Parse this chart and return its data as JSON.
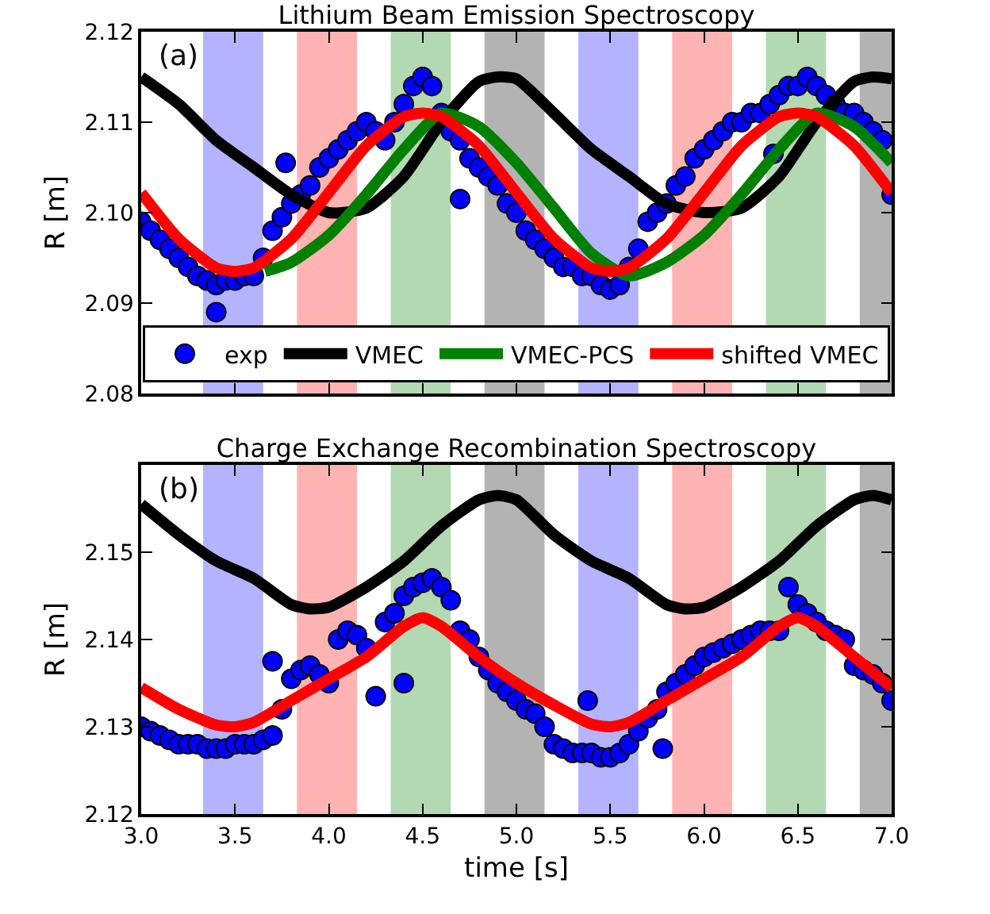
{
  "chart_data": [
    {
      "type": "line",
      "title": "Lithium Beam Emission Spectroscopy",
      "ylabel": "R [m]",
      "annotations": [
        "(a)"
      ],
      "xlim": [
        3,
        7
      ],
      "xticks": [
        {
          "value": 3,
          "label": null
        },
        {
          "value": 3.5,
          "label": null
        },
        {
          "value": 4,
          "label": null
        },
        {
          "value": 4.5,
          "label": null
        },
        {
          "value": 5,
          "label": null
        },
        {
          "value": 5.5,
          "label": null
        },
        {
          "value": 6,
          "label": null
        },
        {
          "value": 6.5,
          "label": null
        },
        {
          "value": 7,
          "label": null
        }
      ],
      "ylim": [
        2.08,
        2.12
      ],
      "yticks": [
        {
          "value": 2.08,
          "label": "2.08"
        },
        {
          "value": 2.09,
          "label": "2.09"
        },
        {
          "value": 2.1,
          "label": "2.10"
        },
        {
          "value": 2.11,
          "label": "2.11"
        },
        {
          "value": 2.12,
          "label": "2.12"
        }
      ],
      "tick_labels": "y",
      "grid": false,
      "legend": "bottom",
      "bands": [
        {
          "axis": "x",
          "from": 3.33,
          "to": 3.65,
          "color": "#b3b3ff"
        },
        {
          "axis": "x",
          "from": 3.83,
          "to": 4.15,
          "color": "#ffb3b3"
        },
        {
          "axis": "x",
          "from": 4.33,
          "to": 4.65,
          "color": "#b3d9b3"
        },
        {
          "axis": "x",
          "from": 4.83,
          "to": 5.15,
          "color": "#b3b3b3"
        },
        {
          "axis": "x",
          "from": 5.33,
          "to": 5.65,
          "color": "#b3b3ff"
        },
        {
          "axis": "x",
          "from": 5.83,
          "to": 6.15,
          "color": "#ffb3b3"
        },
        {
          "axis": "x",
          "from": 6.33,
          "to": 6.65,
          "color": "#b3d9b3"
        },
        {
          "axis": "x",
          "from": 6.83,
          "to": 7.0,
          "color": "#b3b3b3"
        }
      ],
      "series": [
        {
          "name": "exp",
          "type": "scatter",
          "marker": "circle",
          "color": "#0000ff",
          "x": [
            3.0,
            3.05,
            3.1,
            3.15,
            3.2,
            3.25,
            3.3,
            3.35,
            3.4,
            3.4,
            3.45,
            3.5,
            3.55,
            3.6,
            3.65,
            3.7,
            3.75,
            3.77,
            3.8,
            3.85,
            3.9,
            3.95,
            4.0,
            4.05,
            4.1,
            4.15,
            4.2,
            4.25,
            4.3,
            4.35,
            4.4,
            4.45,
            4.5,
            4.55,
            4.6,
            4.65,
            4.7,
            4.7,
            4.75,
            4.8,
            4.85,
            4.9,
            4.95,
            5.0,
            5.05,
            5.1,
            5.15,
            5.2,
            5.25,
            5.3,
            5.35,
            5.4,
            5.45,
            5.5,
            5.55,
            5.6,
            5.65,
            5.7,
            5.75,
            5.8,
            5.85,
            5.9,
            5.95,
            6.0,
            6.05,
            6.1,
            6.15,
            6.2,
            6.25,
            6.3,
            6.35,
            6.37,
            6.4,
            6.45,
            6.5,
            6.55,
            6.6,
            6.65,
            6.7,
            6.75,
            6.8,
            6.85,
            6.9,
            6.95,
            7.0
          ],
          "values": [
            2.099,
            2.098,
            2.097,
            2.096,
            2.095,
            2.094,
            2.093,
            2.0925,
            2.092,
            2.089,
            2.0925,
            2.0925,
            2.093,
            2.093,
            2.095,
            2.098,
            2.0995,
            2.1055,
            2.101,
            2.102,
            2.103,
            2.105,
            2.106,
            2.107,
            2.108,
            2.109,
            2.11,
            2.109,
            2.108,
            2.11,
            2.112,
            2.114,
            2.115,
            2.114,
            2.111,
            2.109,
            2.108,
            2.1015,
            2.106,
            2.105,
            2.104,
            2.103,
            2.101,
            2.1,
            2.098,
            2.097,
            2.096,
            2.095,
            2.094,
            2.094,
            2.093,
            2.093,
            2.092,
            2.0915,
            2.092,
            2.094,
            2.096,
            2.099,
            2.1,
            2.101,
            2.103,
            2.104,
            2.106,
            2.107,
            2.108,
            2.109,
            2.11,
            2.11,
            2.111,
            2.111,
            2.112,
            2.1065,
            2.113,
            2.114,
            2.114,
            2.115,
            2.114,
            2.113,
            2.112,
            2.111,
            2.111,
            2.11,
            2.109,
            2.108,
            2.102
          ]
        },
        {
          "name": "VMEC",
          "type": "line",
          "marker": "none",
          "line_style": "solid",
          "color": "#000000",
          "x": [
            3.0,
            3.2,
            3.4,
            3.6,
            3.8,
            4.0,
            4.2,
            4.4,
            4.6,
            4.8,
            4.9,
            5.0,
            5.2,
            5.4,
            5.6,
            5.8,
            6.0,
            6.2,
            6.4,
            6.6,
            6.8,
            6.9,
            7.0
          ],
          "values": [
            2.115,
            2.112,
            2.108,
            2.105,
            2.102,
            2.1,
            2.1005,
            2.104,
            2.11,
            2.1145,
            2.115,
            2.1148,
            2.111,
            2.107,
            2.104,
            2.101,
            2.1,
            2.1005,
            2.104,
            2.11,
            2.1145,
            2.115,
            2.1148
          ]
        },
        {
          "name": "VMEC-PCS",
          "type": "line",
          "marker": "none",
          "line_style": "solid",
          "color": "#008000",
          "x": [
            3.66,
            3.8,
            4.0,
            4.2,
            4.4,
            4.6,
            4.8,
            5.0,
            5.2,
            5.4,
            5.6,
            5.8,
            6.0,
            6.2,
            6.4,
            6.6,
            6.8,
            7.0
          ],
          "values": [
            2.0935,
            2.0945,
            2.0975,
            2.102,
            2.107,
            2.111,
            2.1095,
            2.1055,
            2.1005,
            2.0955,
            2.093,
            2.0945,
            2.0975,
            2.102,
            2.107,
            2.111,
            2.1095,
            2.1055
          ]
        },
        {
          "name": "shifted VMEC",
          "type": "line",
          "marker": "none",
          "line_style": "solid",
          "color": "#ff0000",
          "x": [
            3.0,
            3.2,
            3.4,
            3.5,
            3.6,
            3.8,
            4.0,
            4.2,
            4.4,
            4.5,
            4.6,
            4.8,
            5.0,
            5.2,
            5.4,
            5.5,
            5.6,
            5.8,
            6.0,
            6.2,
            6.4,
            6.5,
            6.6,
            6.8,
            7.0
          ],
          "values": [
            2.1022,
            2.0971,
            2.0939,
            2.0935,
            2.0939,
            2.0971,
            2.1022,
            2.1074,
            2.1106,
            2.111,
            2.1106,
            2.1074,
            2.1022,
            2.0971,
            2.0939,
            2.0935,
            2.0939,
            2.0971,
            2.1022,
            2.1074,
            2.1106,
            2.111,
            2.1106,
            2.1074,
            2.1022
          ]
        }
      ]
    },
    {
      "type": "line",
      "title": "Charge Exchange Recombination Spectroscopy",
      "ylabel": "R [m]",
      "xlabel": "time [s]",
      "annotations": [
        "(b)"
      ],
      "xlim": [
        3,
        7
      ],
      "xticks": [
        {
          "value": 3,
          "label": "3.0"
        },
        {
          "value": 3.5,
          "label": "3.5"
        },
        {
          "value": 4,
          "label": "4.0"
        },
        {
          "value": 4.5,
          "label": "4.5"
        },
        {
          "value": 5,
          "label": "5.0"
        },
        {
          "value": 5.5,
          "label": "5.5"
        },
        {
          "value": 6,
          "label": "6.0"
        },
        {
          "value": 6.5,
          "label": "6.5"
        },
        {
          "value": 7,
          "label": "7.0"
        }
      ],
      "ylim": [
        2.12,
        2.16
      ],
      "yticks": [
        {
          "value": 2.12,
          "label": "2.12"
        },
        {
          "value": 2.13,
          "label": "2.13"
        },
        {
          "value": 2.14,
          "label": "2.14"
        },
        {
          "value": 2.15,
          "label": "2.15"
        }
      ],
      "grid": false,
      "legend": false,
      "bands": [
        {
          "axis": "x",
          "from": 3.33,
          "to": 3.65,
          "color": "#b3b3ff"
        },
        {
          "axis": "x",
          "from": 3.83,
          "to": 4.15,
          "color": "#ffb3b3"
        },
        {
          "axis": "x",
          "from": 4.33,
          "to": 4.65,
          "color": "#b3d9b3"
        },
        {
          "axis": "x",
          "from": 4.83,
          "to": 5.15,
          "color": "#b3b3b3"
        },
        {
          "axis": "x",
          "from": 5.33,
          "to": 5.65,
          "color": "#b3b3ff"
        },
        {
          "axis": "x",
          "from": 5.83,
          "to": 6.15,
          "color": "#ffb3b3"
        },
        {
          "axis": "x",
          "from": 6.33,
          "to": 6.65,
          "color": "#b3d9b3"
        },
        {
          "axis": "x",
          "from": 6.83,
          "to": 7.0,
          "color": "#b3b3b3"
        }
      ],
      "series": [
        {
          "type": "scatter",
          "marker": "circle",
          "color": "#0000ff",
          "x": [
            3.0,
            3.05,
            3.1,
            3.15,
            3.2,
            3.25,
            3.3,
            3.35,
            3.4,
            3.45,
            3.5,
            3.55,
            3.6,
            3.65,
            3.7,
            3.7,
            3.75,
            3.8,
            3.85,
            3.9,
            3.95,
            4.0,
            4.05,
            4.1,
            4.15,
            4.2,
            4.25,
            4.3,
            4.35,
            4.4,
            4.4,
            4.45,
            4.5,
            4.55,
            4.6,
            4.65,
            4.7,
            4.75,
            4.8,
            4.85,
            4.9,
            4.95,
            5.0,
            5.05,
            5.1,
            5.15,
            5.2,
            5.25,
            5.3,
            5.35,
            5.38,
            5.4,
            5.45,
            5.5,
            5.55,
            5.6,
            5.65,
            5.7,
            5.75,
            5.78,
            5.8,
            5.85,
            5.9,
            5.95,
            6.0,
            6.05,
            6.1,
            6.15,
            6.2,
            6.25,
            6.3,
            6.35,
            6.4,
            6.45,
            6.5,
            6.55,
            6.6,
            6.65,
            6.7,
            6.75,
            6.8,
            6.85,
            6.9,
            6.95,
            7.0
          ],
          "values": [
            2.13,
            2.1295,
            2.129,
            2.1285,
            2.128,
            2.128,
            2.128,
            2.1275,
            2.1275,
            2.1275,
            2.128,
            2.128,
            2.128,
            2.1285,
            2.129,
            2.1375,
            2.132,
            2.1355,
            2.1365,
            2.137,
            2.136,
            2.135,
            2.14,
            2.141,
            2.1405,
            2.139,
            2.1335,
            2.142,
            2.143,
            2.145,
            2.135,
            2.146,
            2.1465,
            2.147,
            2.146,
            2.1445,
            2.141,
            2.14,
            2.138,
            2.1365,
            2.135,
            2.134,
            2.133,
            2.132,
            2.1315,
            2.13,
            2.128,
            2.1275,
            2.127,
            2.127,
            2.133,
            2.127,
            2.1265,
            2.1265,
            2.127,
            2.128,
            2.1295,
            2.131,
            2.132,
            2.1275,
            2.134,
            2.135,
            2.136,
            2.137,
            2.138,
            2.1385,
            2.139,
            2.1395,
            2.14,
            2.1405,
            2.141,
            2.141,
            2.141,
            2.146,
            2.144,
            2.143,
            2.142,
            2.141,
            2.1405,
            2.14,
            2.137,
            2.1365,
            2.136,
            2.135,
            2.133
          ]
        },
        {
          "type": "line",
          "marker": "none",
          "line_style": "solid",
          "color": "#000000",
          "x": [
            3.0,
            3.2,
            3.4,
            3.6,
            3.8,
            3.9,
            4.0,
            4.2,
            4.4,
            4.6,
            4.8,
            4.9,
            5.0,
            5.2,
            5.4,
            5.6,
            5.8,
            5.9,
            6.0,
            6.2,
            6.4,
            6.6,
            6.8,
            6.9,
            7.0
          ],
          "values": [
            2.1555,
            2.152,
            2.149,
            2.147,
            2.144,
            2.1435,
            2.1437,
            2.146,
            2.149,
            2.153,
            2.156,
            2.1565,
            2.156,
            2.152,
            2.149,
            2.147,
            2.144,
            2.1435,
            2.1437,
            2.146,
            2.149,
            2.153,
            2.156,
            2.1565,
            2.156
          ]
        },
        {
          "type": "line",
          "marker": "none",
          "line_style": "solid",
          "color": "#ff0000",
          "x": [
            3.0,
            3.2,
            3.4,
            3.5,
            3.6,
            3.8,
            4.0,
            4.2,
            4.4,
            4.5,
            4.6,
            4.8,
            5.0,
            5.2,
            5.4,
            5.5,
            5.6,
            5.8,
            6.0,
            6.2,
            6.4,
            6.5,
            6.6,
            6.8,
            7.0
          ],
          "values": [
            2.1345,
            2.132,
            2.1302,
            2.13,
            2.1305,
            2.133,
            2.1355,
            2.138,
            2.1415,
            2.1425,
            2.1415,
            2.138,
            2.135,
            2.1325,
            2.1303,
            2.13,
            2.1305,
            2.133,
            2.1355,
            2.138,
            2.1415,
            2.1425,
            2.1415,
            2.138,
            2.1345
          ]
        }
      ]
    }
  ]
}
